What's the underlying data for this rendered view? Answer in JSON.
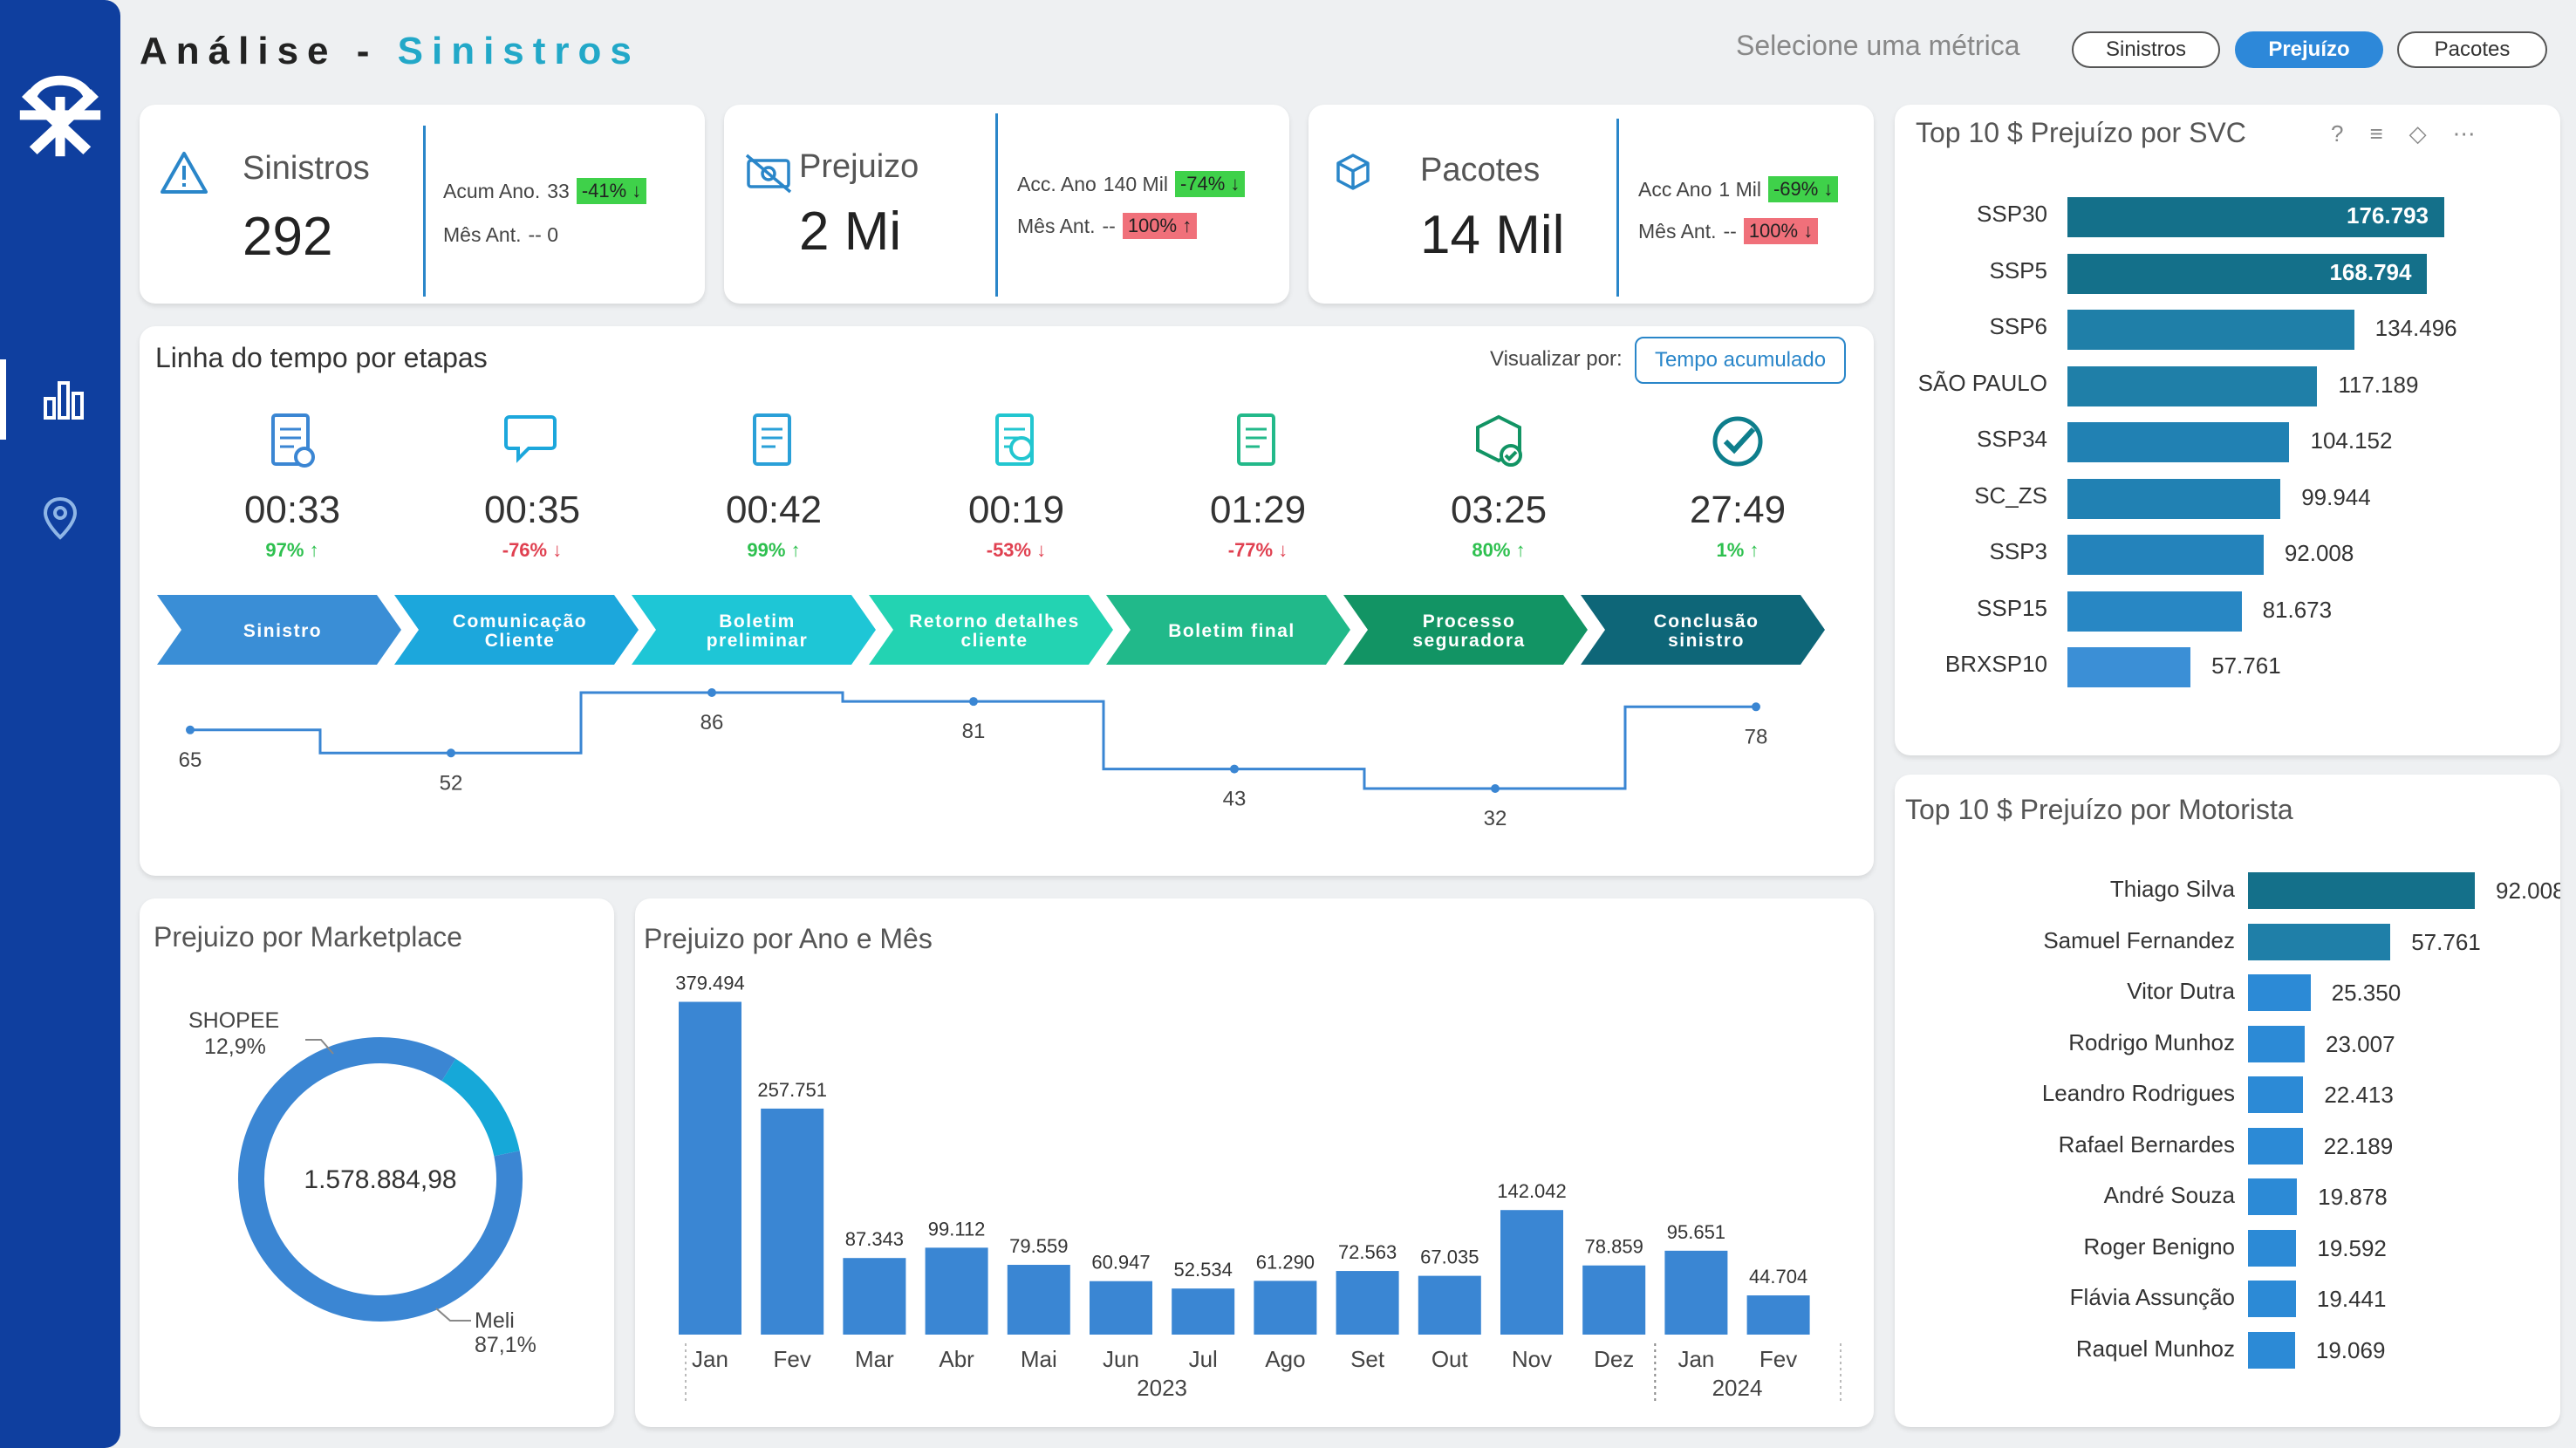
{
  "header": {
    "title_prefix": "Análise",
    "title_sep": " - ",
    "title_main": "Sinistros",
    "metric_label": "Selecione uma métrica",
    "pills": [
      "Sinistros",
      "Prejuízo",
      "Pacotes"
    ],
    "active_pill": "Prejuízo"
  },
  "kpis": [
    {
      "title": "Sinistros",
      "value": "292",
      "line1_label": "Acum Ano.",
      "line1_val": "33",
      "line1_badge": "-41% ↓",
      "line1_color": "g",
      "line2_label": "Mês Ant.",
      "line2_val": "--  0",
      "line2_badge": "",
      "line2_color": ""
    },
    {
      "title": "Prejuizo",
      "value": "2 Mi",
      "line1_label": "Acc. Ano",
      "line1_val": "140 Mil",
      "line1_badge": "-74% ↓",
      "line1_color": "g",
      "line2_label": "Mês Ant.",
      "line2_val": "--",
      "line2_badge": "100% ↑",
      "line2_color": "r"
    },
    {
      "title": "Pacotes",
      "value": "14 Mil",
      "line1_label": "Acc Ano",
      "line1_val": "1 Mil",
      "line1_badge": "-69% ↓",
      "line1_color": "g",
      "line2_label": "Mês Ant.",
      "line2_val": "--",
      "line2_badge": "100% ↓",
      "line2_color": "r"
    }
  ],
  "timeline": {
    "title": "Linha do tempo por etapas",
    "view_label": "Visualizar por:",
    "view_button": "Tempo acumulado",
    "stages": [
      {
        "name": "Sinistro",
        "time": "00:33",
        "pct": "97% ↑",
        "dir": "up",
        "color": "#3a8ed6",
        "icon": "document-add-icon"
      },
      {
        "name": "Comunicação\nCliente",
        "time": "00:35",
        "pct": "-76% ↓",
        "dir": "down",
        "color": "#1ca7dc",
        "icon": "chat-icon"
      },
      {
        "name": "Boletim\npreliminar",
        "time": "00:42",
        "pct": "99% ↑",
        "dir": "up",
        "color": "#1ec6d6",
        "icon": "report-icon"
      },
      {
        "name": "Retorno detalhes\ncliente",
        "time": "00:19",
        "pct": "-53% ↓",
        "dir": "down",
        "color": "#23d3b2",
        "icon": "search-document-icon"
      },
      {
        "name": "Boletim final",
        "time": "01:29",
        "pct": "-77% ↓",
        "dir": "down",
        "color": "#21b98a",
        "icon": "certificate-icon"
      },
      {
        "name": "Processo\nseguradora",
        "time": "03:25",
        "pct": "80% ↑",
        "dir": "up",
        "color": "#129464",
        "icon": "package-check-icon"
      },
      {
        "name": "Conclusão\nsinistro",
        "time": "27:49",
        "pct": "1% ↑",
        "dir": "up",
        "color": "#0e6678",
        "icon": "check-circle-icon"
      }
    ],
    "step_values": [
      65,
      52,
      86,
      81,
      43,
      32,
      78
    ]
  },
  "svc": {
    "title": "Top 10 $ Prejuízo por SVC",
    "rows": [
      {
        "label": "SSP30",
        "value": 176793,
        "display": "176.793",
        "color": "#14708a",
        "inside": true
      },
      {
        "label": "SSP5",
        "value": 168794,
        "display": "168.794",
        "color": "#14708a",
        "inside": true
      },
      {
        "label": "SSP6",
        "value": 134496,
        "display": "134.496",
        "color": "#1f7fa8",
        "inside": false
      },
      {
        "label": "SÃO PAULO",
        "value": 117189,
        "display": "117.189",
        "color": "#1f7fa8",
        "inside": false
      },
      {
        "label": "SSP34",
        "value": 104152,
        "display": "104.152",
        "color": "#2181b3",
        "inside": false
      },
      {
        "label": "SC_ZS",
        "value": 99944,
        "display": "99.944",
        "color": "#2181b3",
        "inside": false
      },
      {
        "label": "SSP3",
        "value": 92008,
        "display": "92.008",
        "color": "#2483bb",
        "inside": false
      },
      {
        "label": "SSP15",
        "value": 81673,
        "display": "81.673",
        "color": "#2887c4",
        "inside": false
      },
      {
        "label": "BRXSP10",
        "value": 57761,
        "display": "57.761",
        "color": "#3b8fd6",
        "inside": false
      }
    ]
  },
  "driver": {
    "title": "Top 10 $ Prejuízo por Motorista",
    "rows": [
      {
        "label": "Thiago Silva",
        "value": 92008,
        "display": "92.008",
        "color": "#14708a"
      },
      {
        "label": "Samuel Fernandez",
        "value": 57761,
        "display": "57.761",
        "color": "#1f7fa8"
      },
      {
        "label": "Vitor Dutra",
        "value": 25350,
        "display": "25.350",
        "color": "#2c8ad6"
      },
      {
        "label": "Rodrigo Munhoz",
        "value": 23007,
        "display": "23.007",
        "color": "#2c8ad6"
      },
      {
        "label": "Leandro Rodrigues",
        "value": 22413,
        "display": "22.413",
        "color": "#2c8ad6"
      },
      {
        "label": "Rafael Bernardes",
        "value": 22189,
        "display": "22.189",
        "color": "#2c8ad6"
      },
      {
        "label": "André Souza",
        "value": 19878,
        "display": "19.878",
        "color": "#2c8ad6"
      },
      {
        "label": "Roger Benigno",
        "value": 19592,
        "display": "19.592",
        "color": "#2c8ad6"
      },
      {
        "label": "Flávia Assunção",
        "value": 19441,
        "display": "19.441",
        "color": "#2c8ad6"
      },
      {
        "label": "Raquel Munhoz",
        "value": 19069,
        "display": "19.069",
        "color": "#2c8ad6"
      }
    ]
  },
  "marketplace": {
    "title": "Prejuizo por Marketplace",
    "total": "1.578.884,98",
    "slices": [
      {
        "name": "SHOPEE",
        "pct": "12,9%",
        "value": 12.9,
        "color": "#16a8d8"
      },
      {
        "name": "Meli",
        "pct": "87,1%",
        "value": 87.1,
        "color": "#3b86d3"
      }
    ]
  },
  "chart_data": {
    "type": "bar",
    "title": "Prejuizo por Ano e Mês",
    "categories": [
      "Jan",
      "Fev",
      "Mar",
      "Abr",
      "Mai",
      "Jun",
      "Jul",
      "Ago",
      "Set",
      "Out",
      "Nov",
      "Dez",
      "Jan",
      "Fev"
    ],
    "years": [
      {
        "label": "2023",
        "from": 0,
        "to": 11
      },
      {
        "label": "2024",
        "from": 12,
        "to": 13
      }
    ],
    "values": [
      379494,
      257751,
      87343,
      99112,
      79559,
      60947,
      52534,
      61290,
      72563,
      67035,
      142042,
      78859,
      95651,
      44704
    ],
    "labels": [
      "379.494",
      "257.751",
      "87.343",
      "99.112",
      "79.559",
      "60.947",
      "52.534",
      "61.290",
      "72.563",
      "67.035",
      "142.042",
      "78.859",
      "95.651",
      "44.704"
    ],
    "color": "#3a86d3",
    "ylim": [
      0,
      380000
    ]
  }
}
